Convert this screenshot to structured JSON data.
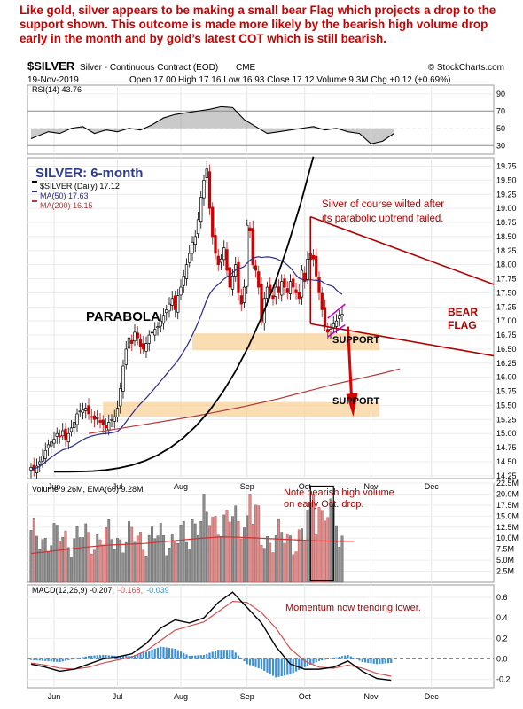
{
  "commentary": "Like gold, silver appears to be making a small bear Flag which projects a drop to the support shown. This outcome is made more likely by the bearish high volume drop early in the month  and by gold’s latest COT which is still bearish.",
  "header": {
    "symbol": "$SILVER",
    "description": "Silver - Continuous Contract (EOD)",
    "exchange": "CME",
    "copyright": "© StockCharts.com",
    "date": "19-Nov-2019",
    "quote": "Open 17.00  High 17.16  Low 16.93  Close 17.12  Volume 9.3M  Chg +0.12 (+0.69%)"
  },
  "colors": {
    "up": "#000000",
    "down": "#cc0000",
    "ma50": "#2b2b8c",
    "ma200": "#b03a3a",
    "support": "#f8d29a",
    "annotation": "#b00000",
    "arrow": "#dd0000",
    "magenta": "#cc00cc",
    "histogram": "#3f8fd6",
    "signal": "#d05050"
  },
  "chart_data": [
    {
      "type": "line",
      "panel": "rsi",
      "legend": "RSI(14) 43.76",
      "ylim": [
        20,
        100
      ],
      "y_ticks": [
        90,
        70,
        50,
        30
      ],
      "reference_lines": [
        70,
        30
      ],
      "series": [
        {
          "name": "RSI(14)",
          "x": [
            0,
            6,
            10,
            14,
            18,
            22,
            26,
            30,
            34,
            38,
            42,
            46,
            50,
            54,
            58,
            62,
            66,
            70,
            74,
            78,
            82,
            86,
            90,
            94,
            98,
            102,
            106,
            110,
            114,
            118,
            122,
            126
          ],
          "values": [
            38,
            46,
            44,
            50,
            52,
            44,
            48,
            46,
            50,
            48,
            54,
            62,
            66,
            68,
            70,
            72,
            75,
            74,
            60,
            52,
            44,
            46,
            48,
            50,
            52,
            48,
            50,
            46,
            44,
            32,
            35,
            44
          ]
        }
      ]
    },
    {
      "type": "candlestick",
      "panel": "price",
      "title": "SILVER: 6-month",
      "legend": [
        "$SILVER (Daily) 17.12",
        "MA(50) 17.63",
        "MA(200) 16.15"
      ],
      "ylim": [
        14.2,
        19.9
      ],
      "y_ticks": [
        19.75,
        19.5,
        19.25,
        19.0,
        18.75,
        18.5,
        18.25,
        18.0,
        17.75,
        17.5,
        17.25,
        17.0,
        16.75,
        16.5,
        16.25,
        16.0,
        15.75,
        15.5,
        15.25,
        15.0,
        14.75,
        14.5,
        14.25
      ],
      "x_ticks": [
        {
          "i": 8,
          "label": "Jun"
        },
        {
          "i": 30,
          "label": "Jul"
        },
        {
          "i": 52,
          "label": "Aug"
        },
        {
          "i": 75,
          "label": "Sep"
        },
        {
          "i": 95,
          "label": "Oct"
        },
        {
          "i": 118,
          "label": "Nov"
        },
        {
          "i": 139,
          "label": "Dec"
        }
      ],
      "close": [
        14.4,
        14.35,
        14.42,
        14.5,
        14.6,
        14.7,
        14.8,
        14.85,
        14.9,
        15.0,
        14.95,
        15.05,
        14.9,
        15.0,
        15.1,
        15.2,
        15.35,
        15.4,
        15.42,
        15.45,
        15.35,
        15.3,
        15.25,
        15.28,
        15.2,
        15.15,
        15.1,
        15.2,
        15.25,
        15.3,
        15.45,
        15.8,
        16.2,
        16.5,
        16.7,
        16.6,
        16.8,
        16.7,
        16.55,
        16.5,
        16.6,
        16.75,
        16.8,
        16.85,
        16.9,
        17.0,
        17.1,
        17.2,
        17.3,
        17.4,
        17.2,
        17.45,
        17.6,
        17.8,
        18.0,
        18.2,
        18.4,
        18.5,
        18.8,
        19.2,
        19.5,
        19.7,
        19.0,
        18.5,
        18.2,
        18.0,
        18.1,
        18.3,
        17.9,
        17.6,
        17.8,
        18.0,
        17.5,
        17.3,
        17.6,
        18.7,
        18.6,
        18.0,
        17.9,
        17.6,
        17.0,
        17.4,
        17.6,
        17.5,
        17.4,
        17.6,
        17.5,
        17.7,
        17.6,
        17.5,
        17.7,
        17.6,
        17.5,
        17.4,
        17.9,
        17.7,
        18.1,
        18.2,
        18.1,
        17.8,
        17.5,
        17.2,
        16.9,
        16.8,
        16.85,
        16.95,
        17.0,
        17.1,
        17.12
      ],
      "ma50": [
        14.92,
        14.91,
        14.92,
        14.94,
        14.97,
        15.0,
        15.03,
        15.06,
        15.1,
        15.14,
        15.18,
        15.23,
        15.28,
        15.34,
        15.41,
        15.48,
        15.56,
        15.64,
        15.73,
        15.82,
        15.92,
        16.02,
        16.12,
        16.22,
        16.33,
        16.44,
        16.55,
        16.66,
        16.78,
        16.9,
        17.01,
        17.12,
        17.22,
        17.32,
        17.41,
        17.49,
        17.56,
        17.62,
        17.67,
        17.72,
        17.76,
        17.79,
        17.8,
        17.8,
        17.8,
        17.79,
        17.78,
        17.76,
        17.74,
        17.71,
        17.69,
        17.66,
        17.63
      ],
      "ma50_start": 56,
      "ma200": [
        15.0,
        15.05,
        15.1,
        15.15,
        15.2,
        15.25,
        15.3,
        15.36,
        15.42,
        15.48,
        15.55,
        15.62,
        15.7,
        15.78,
        15.86,
        15.93,
        16.0,
        16.07,
        16.15
      ],
      "ma200_x": [
        20,
        26,
        32,
        38,
        44,
        50,
        56,
        62,
        68,
        74,
        80,
        86,
        92,
        98,
        104,
        110,
        116,
        122,
        128
      ],
      "annotations": [
        "PARABOLA",
        "Silver of course wilted after its parabolic uptrend failed.",
        "SUPPORT",
        "SUPPORT",
        "BEAR FLAG"
      ]
    },
    {
      "type": "bar",
      "panel": "volume",
      "legend": "Volume 9.26M, EMA(60) 9.28M",
      "ylim": [
        0,
        22.5
      ],
      "y_ticks": [
        "22.5M",
        "20.0M",
        "17.5M",
        "15.0M",
        "12.5M",
        "10.0M",
        "7.5M",
        "5.0M",
        "2.5M"
      ],
      "annotation": "Note bearish high volume on early Oct. drop.",
      "ema60": [
        6.5,
        7.0,
        7.5,
        8.0,
        8.4,
        8.6,
        8.8,
        9.2,
        9.6,
        10.0,
        10.3,
        10.2,
        10.0,
        9.8,
        9.6,
        9.4,
        9.3,
        9.28
      ]
    },
    {
      "type": "line",
      "panel": "macd",
      "legend": [
        "MACD(12,26,9) -0.207,",
        "-0.168,",
        "-0.039"
      ],
      "ylim": [
        -0.28,
        0.72
      ],
      "y_ticks": [
        0.6,
        0.4,
        0.2,
        0.0,
        -0.2
      ],
      "annotation": "Momentum now trending lower.",
      "series": [
        {
          "name": "MACD(12,26,9)",
          "x": [
            0,
            5,
            10,
            15,
            20,
            25,
            30,
            35,
            40,
            45,
            50,
            55,
            60,
            65,
            70,
            75,
            80,
            85,
            90,
            95,
            100,
            105,
            110,
            115,
            120,
            125
          ],
          "values": [
            -0.05,
            -0.08,
            -0.12,
            -0.1,
            -0.05,
            0.0,
            0.02,
            0.05,
            0.15,
            0.3,
            0.38,
            0.35,
            0.4,
            0.55,
            0.65,
            0.5,
            0.35,
            0.12,
            -0.05,
            -0.1,
            -0.1,
            -0.08,
            -0.02,
            -0.12,
            -0.19,
            -0.207
          ]
        },
        {
          "name": "signal",
          "x": [
            0,
            5,
            10,
            15,
            20,
            25,
            30,
            35,
            40,
            45,
            50,
            55,
            60,
            65,
            70,
            75,
            80,
            85,
            90,
            95,
            100,
            105,
            110,
            115,
            120,
            125
          ],
          "values": [
            -0.04,
            -0.06,
            -0.09,
            -0.1,
            -0.08,
            -0.04,
            -0.01,
            0.02,
            0.08,
            0.18,
            0.28,
            0.32,
            0.36,
            0.46,
            0.56,
            0.55,
            0.45,
            0.3,
            0.1,
            -0.02,
            -0.08,
            -0.09,
            -0.06,
            -0.09,
            -0.14,
            -0.168
          ]
        }
      ]
    }
  ]
}
